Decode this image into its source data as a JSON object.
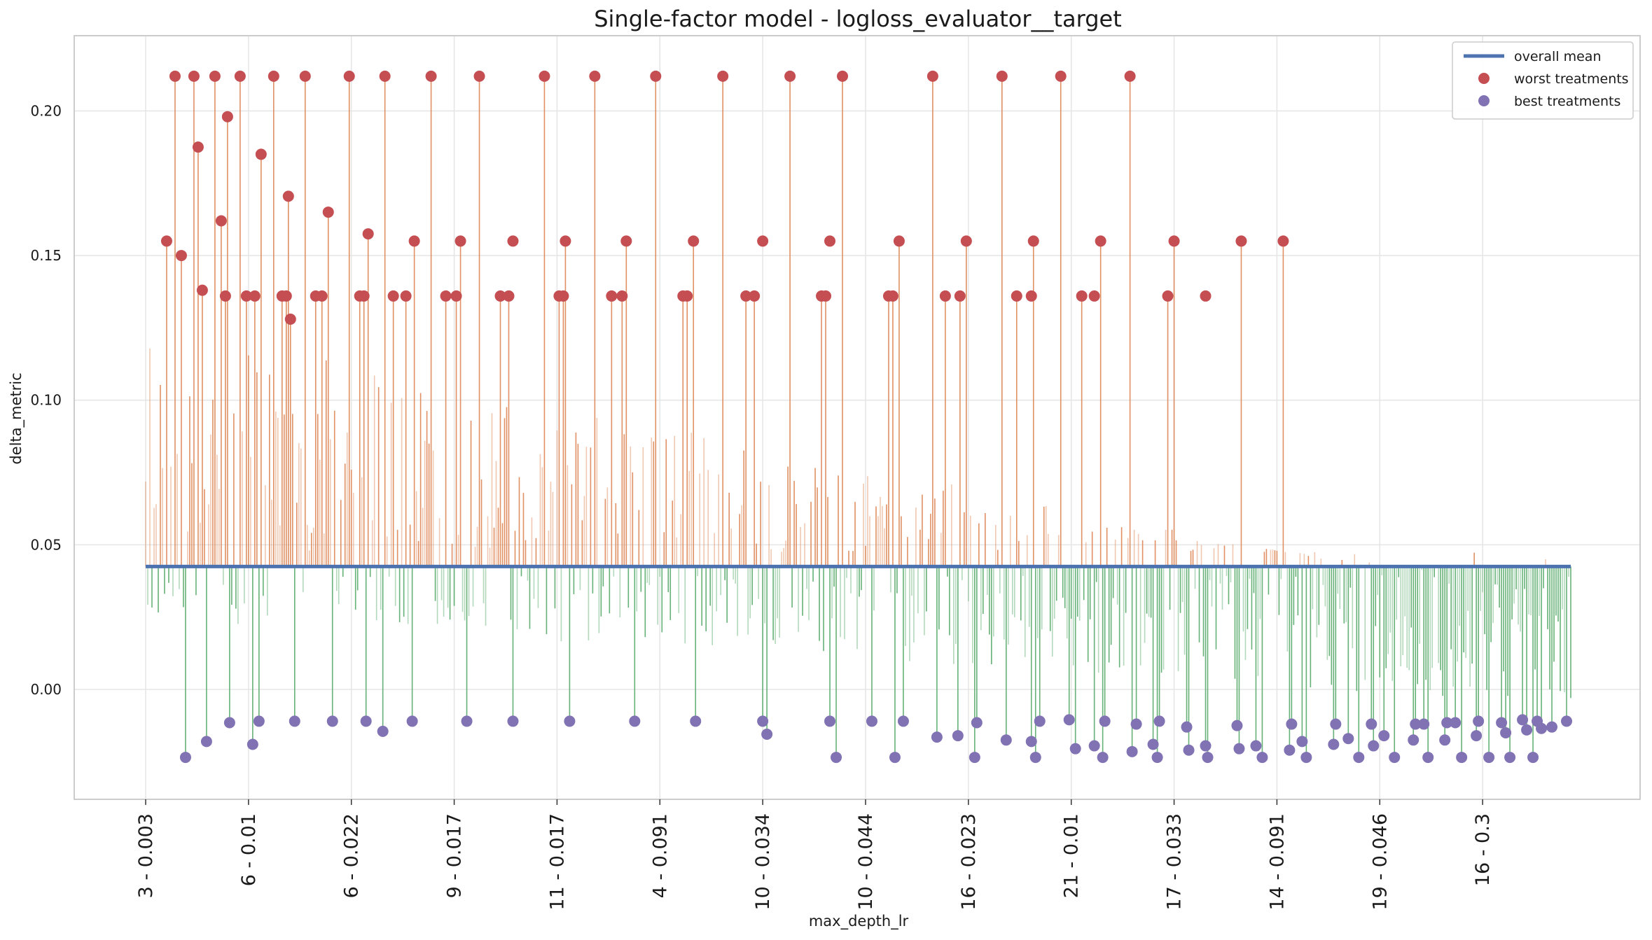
{
  "chart_data": {
    "type": "bar",
    "title": "Single-factor model - logloss_evaluator__target",
    "xlabel": "max_depth_lr",
    "ylabel": "delta_metric",
    "ylim": [
      -0.038,
      0.226
    ],
    "yticks": [
      0.0,
      0.05,
      0.1,
      0.15,
      0.2
    ],
    "ytick_labels": [
      "0.00",
      "0.05",
      "0.10",
      "0.15",
      "0.20"
    ],
    "n_categories": 680,
    "x_tick_labels": [
      "3 - 0.003",
      "6 - 0.01",
      "6 - 0.022",
      "9 - 0.017",
      "11 - 0.017",
      "4 - 0.091",
      "10 - 0.034",
      "10 - 0.044",
      "16 - 0.023",
      "21 - 0.01",
      "17 - 0.033",
      "14 - 0.091",
      "19 - 0.046",
      "16 - 0.3"
    ],
    "overall_mean": 0.0425,
    "grid": true,
    "legend_position": "top-right",
    "legend": {
      "mean": "overall mean",
      "worst": "worst treatments",
      "best": "best treatments"
    },
    "colors": {
      "mean_line": "#4c72b0",
      "worst_marker": "#c44e52",
      "best_marker": "#8172b3",
      "above_bar": "#dd8452",
      "below_bar": "#55a868",
      "grid": "#e5e5e5",
      "frame": "#cccccc"
    },
    "worst_treatments": [
      {
        "idx": 10,
        "v": 0.155
      },
      {
        "idx": 14,
        "v": 0.212
      },
      {
        "idx": 17,
        "v": 0.15
      },
      {
        "idx": 23,
        "v": 0.212
      },
      {
        "idx": 25,
        "v": 0.1875
      },
      {
        "idx": 27,
        "v": 0.138
      },
      {
        "idx": 33,
        "v": 0.212
      },
      {
        "idx": 36,
        "v": 0.162
      },
      {
        "idx": 38,
        "v": 0.136
      },
      {
        "idx": 39,
        "v": 0.198
      },
      {
        "idx": 45,
        "v": 0.212
      },
      {
        "idx": 48,
        "v": 0.136
      },
      {
        "idx": 52,
        "v": 0.136
      },
      {
        "idx": 55,
        "v": 0.185
      },
      {
        "idx": 61,
        "v": 0.212
      },
      {
        "idx": 65,
        "v": 0.136
      },
      {
        "idx": 67,
        "v": 0.136
      },
      {
        "idx": 68,
        "v": 0.1705
      },
      {
        "idx": 69,
        "v": 0.128
      },
      {
        "idx": 76,
        "v": 0.212
      },
      {
        "idx": 81,
        "v": 0.136
      },
      {
        "idx": 84,
        "v": 0.136
      },
      {
        "idx": 87,
        "v": 0.165
      },
      {
        "idx": 97,
        "v": 0.212
      },
      {
        "idx": 102,
        "v": 0.136
      },
      {
        "idx": 104,
        "v": 0.136
      },
      {
        "idx": 106,
        "v": 0.1575
      },
      {
        "idx": 114,
        "v": 0.212
      },
      {
        "idx": 118,
        "v": 0.136
      },
      {
        "idx": 124,
        "v": 0.136
      },
      {
        "idx": 128,
        "v": 0.155
      },
      {
        "idx": 136,
        "v": 0.212
      },
      {
        "idx": 143,
        "v": 0.136
      },
      {
        "idx": 148,
        "v": 0.136
      },
      {
        "idx": 150,
        "v": 0.155
      },
      {
        "idx": 159,
        "v": 0.212
      },
      {
        "idx": 169,
        "v": 0.136
      },
      {
        "idx": 173,
        "v": 0.136
      },
      {
        "idx": 175,
        "v": 0.155
      },
      {
        "idx": 190,
        "v": 0.212
      },
      {
        "idx": 197,
        "v": 0.136
      },
      {
        "idx": 199,
        "v": 0.136
      },
      {
        "idx": 200,
        "v": 0.155
      },
      {
        "idx": 214,
        "v": 0.212
      },
      {
        "idx": 222,
        "v": 0.136
      },
      {
        "idx": 227,
        "v": 0.136
      },
      {
        "idx": 229,
        "v": 0.155
      },
      {
        "idx": 243,
        "v": 0.212
      },
      {
        "idx": 256,
        "v": 0.136
      },
      {
        "idx": 258,
        "v": 0.136
      },
      {
        "idx": 261,
        "v": 0.155
      },
      {
        "idx": 275,
        "v": 0.212
      },
      {
        "idx": 286,
        "v": 0.136
      },
      {
        "idx": 290,
        "v": 0.136
      },
      {
        "idx": 294,
        "v": 0.155
      },
      {
        "idx": 307,
        "v": 0.212
      },
      {
        "idx": 322,
        "v": 0.136
      },
      {
        "idx": 324,
        "v": 0.136
      },
      {
        "idx": 326,
        "v": 0.155
      },
      {
        "idx": 332,
        "v": 0.212
      },
      {
        "idx": 354,
        "v": 0.136
      },
      {
        "idx": 356,
        "v": 0.136
      },
      {
        "idx": 359,
        "v": 0.155
      },
      {
        "idx": 375,
        "v": 0.212
      },
      {
        "idx": 381,
        "v": 0.136
      },
      {
        "idx": 388,
        "v": 0.136
      },
      {
        "idx": 391,
        "v": 0.155
      },
      {
        "idx": 408,
        "v": 0.212
      },
      {
        "idx": 415,
        "v": 0.136
      },
      {
        "idx": 422,
        "v": 0.136
      },
      {
        "idx": 423,
        "v": 0.155
      },
      {
        "idx": 436,
        "v": 0.212
      },
      {
        "idx": 446,
        "v": 0.136
      },
      {
        "idx": 452,
        "v": 0.136
      },
      {
        "idx": 455,
        "v": 0.155
      },
      {
        "idx": 469,
        "v": 0.212
      },
      {
        "idx": 487,
        "v": 0.136
      },
      {
        "idx": 490,
        "v": 0.155
      },
      {
        "idx": 505,
        "v": 0.136
      },
      {
        "idx": 522,
        "v": 0.155
      },
      {
        "idx": 542,
        "v": 0.155
      }
    ],
    "best_treatments": [
      {
        "idx": 19,
        "v": -0.0235
      },
      {
        "idx": 29,
        "v": -0.018
      },
      {
        "idx": 40,
        "v": -0.0115
      },
      {
        "idx": 51,
        "v": -0.019
      },
      {
        "idx": 54,
        "v": -0.011
      },
      {
        "idx": 71,
        "v": -0.011
      },
      {
        "idx": 89,
        "v": -0.011
      },
      {
        "idx": 105,
        "v": -0.011
      },
      {
        "idx": 113,
        "v": -0.0145
      },
      {
        "idx": 127,
        "v": -0.011
      },
      {
        "idx": 153,
        "v": -0.011
      },
      {
        "idx": 175,
        "v": -0.011
      },
      {
        "idx": 202,
        "v": -0.011
      },
      {
        "idx": 233,
        "v": -0.011
      },
      {
        "idx": 262,
        "v": -0.011
      },
      {
        "idx": 294,
        "v": -0.011
      },
      {
        "idx": 296,
        "v": -0.0155
      },
      {
        "idx": 326,
        "v": -0.011
      },
      {
        "idx": 329,
        "v": -0.0235
      },
      {
        "idx": 346,
        "v": -0.011
      },
      {
        "idx": 357,
        "v": -0.0235
      },
      {
        "idx": 361,
        "v": -0.011
      },
      {
        "idx": 377,
        "v": -0.0165
      },
      {
        "idx": 387,
        "v": -0.016
      },
      {
        "idx": 395,
        "v": -0.0235
      },
      {
        "idx": 396,
        "v": -0.0115
      },
      {
        "idx": 410,
        "v": -0.0175
      },
      {
        "idx": 422,
        "v": -0.018
      },
      {
        "idx": 424,
        "v": -0.0235
      },
      {
        "idx": 426,
        "v": -0.011
      },
      {
        "idx": 440,
        "v": -0.0105
      },
      {
        "idx": 443,
        "v": -0.0205
      },
      {
        "idx": 452,
        "v": -0.0195
      },
      {
        "idx": 456,
        "v": -0.0235
      },
      {
        "idx": 457,
        "v": -0.011
      },
      {
        "idx": 470,
        "v": -0.0215
      },
      {
        "idx": 472,
        "v": -0.012
      },
      {
        "idx": 480,
        "v": -0.019
      },
      {
        "idx": 482,
        "v": -0.0235
      },
      {
        "idx": 483,
        "v": -0.011
      },
      {
        "idx": 496,
        "v": -0.013
      },
      {
        "idx": 497,
        "v": -0.021
      },
      {
        "idx": 505,
        "v": -0.0195
      },
      {
        "idx": 506,
        "v": -0.0235
      },
      {
        "idx": 520,
        "v": -0.0125
      },
      {
        "idx": 521,
        "v": -0.0205
      },
      {
        "idx": 529,
        "v": -0.0195
      },
      {
        "idx": 532,
        "v": -0.0235
      },
      {
        "idx": 545,
        "v": -0.021
      },
      {
        "idx": 546,
        "v": -0.012
      },
      {
        "idx": 551,
        "v": -0.018
      },
      {
        "idx": 553,
        "v": -0.0235
      },
      {
        "idx": 566,
        "v": -0.019
      },
      {
        "idx": 567,
        "v": -0.012
      },
      {
        "idx": 573,
        "v": -0.017
      },
      {
        "idx": 578,
        "v": -0.0235
      },
      {
        "idx": 584,
        "v": -0.012
      },
      {
        "idx": 585,
        "v": -0.0195
      },
      {
        "idx": 590,
        "v": -0.016
      },
      {
        "idx": 595,
        "v": -0.0235
      },
      {
        "idx": 604,
        "v": -0.0175
      },
      {
        "idx": 605,
        "v": -0.012
      },
      {
        "idx": 609,
        "v": -0.012
      },
      {
        "idx": 611,
        "v": -0.0235
      },
      {
        "idx": 619,
        "v": -0.0175
      },
      {
        "idx": 620,
        "v": -0.0115
      },
      {
        "idx": 624,
        "v": -0.0115
      },
      {
        "idx": 627,
        "v": -0.0235
      },
      {
        "idx": 634,
        "v": -0.016
      },
      {
        "idx": 635,
        "v": -0.011
      },
      {
        "idx": 640,
        "v": -0.0235
      },
      {
        "idx": 646,
        "v": -0.0115
      },
      {
        "idx": 648,
        "v": -0.015
      },
      {
        "idx": 650,
        "v": -0.0235
      },
      {
        "idx": 656,
        "v": -0.0105
      },
      {
        "idx": 658,
        "v": -0.014
      },
      {
        "idx": 661,
        "v": -0.0235
      },
      {
        "idx": 663,
        "v": -0.011
      },
      {
        "idx": 665,
        "v": -0.0135
      },
      {
        "idx": 670,
        "v": -0.013
      },
      {
        "idx": 677,
        "v": -0.011
      }
    ]
  }
}
